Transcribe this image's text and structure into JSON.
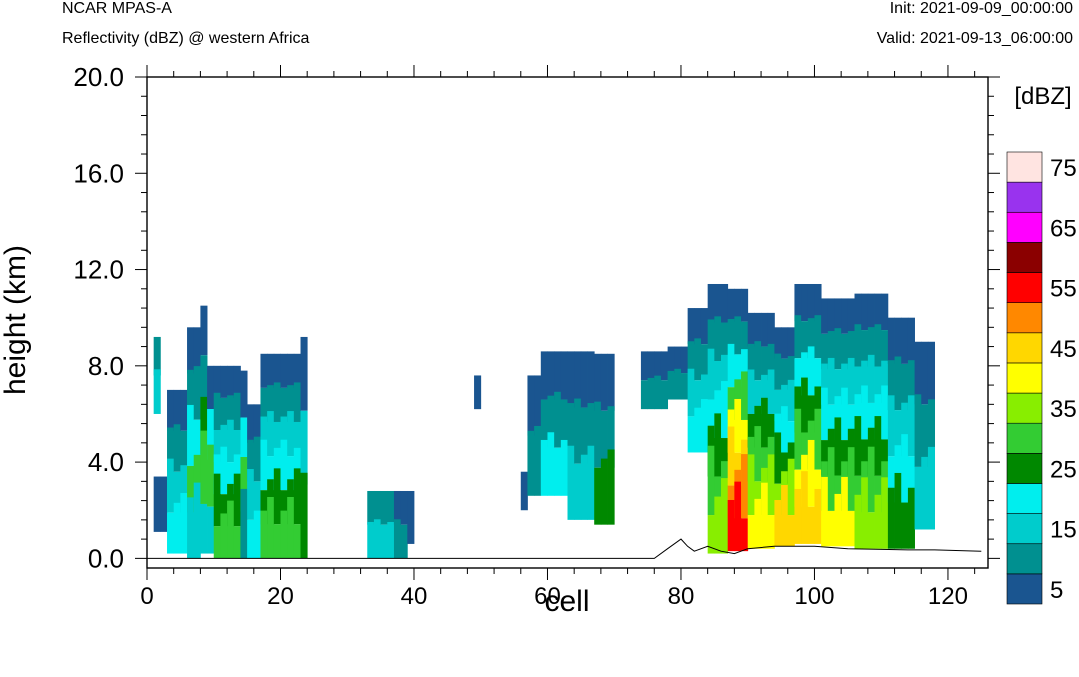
{
  "header": {
    "model": "NCAR MPAS-A",
    "field": "Reflectivity (dBZ) @ western Africa",
    "init": "Init: 2021-09-09_00:00:00",
    "valid": "Valid: 2021-09-13_06:00:00"
  },
  "chart_data": {
    "type": "heatmap",
    "xlabel": "cell",
    "ylabel": "height (km)",
    "xlim": [
      0,
      126
    ],
    "ylim": [
      -0.4,
      20.0
    ],
    "xticks": [
      0,
      20,
      40,
      60,
      80,
      100,
      120
    ],
    "yticks": [
      0,
      4,
      8,
      12,
      16,
      20
    ],
    "xtick_labels": [
      "0",
      "20",
      "40",
      "60",
      "80",
      "100",
      "120"
    ],
    "ytick_labels": [
      "0.0",
      "4.0",
      "8.0",
      "12.0",
      "16.0",
      "20.0"
    ],
    "colorbar": {
      "title": "[dBZ]",
      "labels": [
        "5",
        "15",
        "25",
        "35",
        "45",
        "55",
        "65",
        "75"
      ],
      "bins": [
        {
          "min": 5,
          "color": "#1a5590"
        },
        {
          "min": 10,
          "color": "#009090"
        },
        {
          "min": 15,
          "color": "#00cccc"
        },
        {
          "min": 20,
          "color": "#00eeee"
        },
        {
          "min": 25,
          "color": "#008800"
        },
        {
          "min": 30,
          "color": "#33cc33"
        },
        {
          "min": 35,
          "color": "#88ee00"
        },
        {
          "min": 40,
          "color": "#ffff00"
        },
        {
          "min": 45,
          "color": "#ffd700"
        },
        {
          "min": 50,
          "color": "#ff8800"
        },
        {
          "min": 55,
          "color": "#ff0000"
        },
        {
          "min": 60,
          "color": "#8b0000"
        },
        {
          "min": 65,
          "color": "#ff00ff"
        },
        {
          "min": 70,
          "color": "#9933ee"
        },
        {
          "min": 75,
          "color": "#ffe4e1"
        }
      ]
    },
    "columns": [
      {
        "cells": [
          1,
          2
        ],
        "top_km": 3.4,
        "bottom_km": 1.1,
        "levels": [
          5
        ]
      },
      {
        "cells": [
          1
        ],
        "top_km": 9.2,
        "bottom_km": 6.0,
        "levels": [
          10,
          15
        ]
      },
      {
        "cells": [
          3,
          4,
          5
        ],
        "top_km": 7.0,
        "bottom_km": 0.2,
        "levels": [
          5,
          10,
          15,
          20
        ]
      },
      {
        "cells": [
          6,
          7
        ],
        "top_km": 9.6,
        "bottom_km": 0.0,
        "levels": [
          5,
          10,
          20,
          30,
          15
        ]
      },
      {
        "cells": [
          8
        ],
        "top_km": 10.5,
        "bottom_km": 0.2,
        "levels": [
          5,
          10,
          25,
          30,
          15
        ]
      },
      {
        "cells": [
          9
        ],
        "top_km": 8.0,
        "bottom_km": 0.2,
        "levels": [
          5,
          20,
          30,
          15
        ]
      },
      {
        "cells": [
          10,
          11,
          12,
          13
        ],
        "top_km": 8.0,
        "bottom_km": 0.0,
        "levels": [
          5,
          10,
          15,
          20,
          25,
          30
        ]
      },
      {
        "cells": [
          14
        ],
        "top_km": 7.8,
        "bottom_km": 0.0,
        "levels": [
          5,
          20,
          30,
          10
        ]
      },
      {
        "cells": [
          15,
          16
        ],
        "top_km": 6.4,
        "bottom_km": 0.0,
        "levels": [
          5,
          10,
          15,
          20
        ]
      },
      {
        "cells": [
          17,
          18,
          19,
          20,
          21,
          22
        ],
        "top_km": 8.5,
        "bottom_km": 0.0,
        "levels": [
          5,
          10,
          15,
          20,
          25,
          30
        ]
      },
      {
        "cells": [
          23
        ],
        "top_km": 9.2,
        "bottom_km": 0.0,
        "levels": [
          5,
          15,
          25
        ]
      },
      {
        "cells": [
          33,
          34,
          35,
          36
        ],
        "top_km": 2.8,
        "bottom_km": 0.0,
        "levels": [
          10,
          15
        ]
      },
      {
        "cells": [
          37,
          38
        ],
        "top_km": 2.8,
        "bottom_km": 0.0,
        "levels": [
          5,
          10
        ]
      },
      {
        "cells": [
          39
        ],
        "top_km": 2.8,
        "bottom_km": 0.6,
        "levels": [
          5
        ]
      },
      {
        "cells": [
          49
        ],
        "top_km": 7.6,
        "bottom_km": 6.2,
        "levels": [
          5
        ]
      },
      {
        "cells": [
          56
        ],
        "top_km": 3.6,
        "bottom_km": 2.0,
        "levels": [
          5
        ]
      },
      {
        "cells": [
          57,
          58
        ],
        "top_km": 7.6,
        "bottom_km": 2.6,
        "levels": [
          5,
          10
        ]
      },
      {
        "cells": [
          59,
          60,
          61,
          62
        ],
        "top_km": 8.6,
        "bottom_km": 2.6,
        "levels": [
          5,
          10,
          20
        ]
      },
      {
        "cells": [
          63,
          64,
          65,
          66
        ],
        "top_km": 8.6,
        "bottom_km": 1.6,
        "levels": [
          5,
          10,
          15
        ]
      },
      {
        "cells": [
          67,
          68,
          69
        ],
        "top_km": 8.5,
        "bottom_km": 1.4,
        "levels": [
          5,
          10,
          25
        ]
      },
      {
        "cells": [
          74,
          75,
          76,
          77
        ],
        "top_km": 8.6,
        "bottom_km": 6.2,
        "levels": [
          5,
          10
        ]
      },
      {
        "cells": [
          78,
          79,
          80
        ],
        "top_km": 8.8,
        "bottom_km": 6.6,
        "levels": [
          5,
          10
        ]
      },
      {
        "cells": [
          81,
          82,
          83
        ],
        "top_km": 10.4,
        "bottom_km": 4.4,
        "levels": [
          5,
          10,
          15,
          20
        ]
      },
      {
        "cells": [
          84,
          85,
          86
        ],
        "top_km": 11.4,
        "bottom_km": 0.2,
        "levels": [
          5,
          10,
          15,
          20,
          25,
          30,
          35
        ]
      },
      {
        "cells": [
          87,
          88,
          89
        ],
        "top_km": 11.2,
        "bottom_km": 0.3,
        "levels": [
          5,
          10,
          20,
          30,
          40,
          45,
          50,
          55
        ]
      },
      {
        "cells": [
          90,
          91,
          92,
          93
        ],
        "top_km": 10.2,
        "bottom_km": 0.4,
        "levels": [
          5,
          10,
          15,
          25,
          30,
          35,
          40
        ]
      },
      {
        "cells": [
          94,
          95,
          96
        ],
        "top_km": 9.6,
        "bottom_km": 0.5,
        "levels": [
          5,
          10,
          15,
          20,
          25,
          35,
          45
        ]
      },
      {
        "cells": [
          97,
          98,
          99,
          100
        ],
        "top_km": 11.4,
        "bottom_km": 0.6,
        "levels": [
          5,
          10,
          20,
          25,
          30,
          40,
          45
        ]
      },
      {
        "cells": [
          101,
          102,
          103,
          104,
          105
        ],
        "top_km": 10.8,
        "bottom_km": 0.5,
        "levels": [
          5,
          10,
          15,
          20,
          25,
          30,
          40
        ]
      },
      {
        "cells": [
          106,
          107,
          108,
          109,
          110
        ],
        "top_km": 11.0,
        "bottom_km": 0.4,
        "levels": [
          5,
          10,
          15,
          20,
          25,
          30,
          35
        ]
      },
      {
        "cells": [
          111,
          112,
          113,
          114
        ],
        "top_km": 10.0,
        "bottom_km": 0.4,
        "levels": [
          5,
          10,
          15,
          20,
          25
        ]
      },
      {
        "cells": [
          115,
          116,
          117
        ],
        "top_km": 9.0,
        "bottom_km": 1.2,
        "levels": [
          5,
          10,
          15
        ]
      }
    ],
    "terrain_km": [
      [
        0,
        0.0
      ],
      [
        76,
        0.0
      ],
      [
        78,
        0.4
      ],
      [
        80,
        0.8
      ],
      [
        81,
        0.5
      ],
      [
        82,
        0.3
      ],
      [
        84,
        0.5
      ],
      [
        86,
        0.3
      ],
      [
        88,
        0.2
      ],
      [
        90,
        0.4
      ],
      [
        94,
        0.5
      ],
      [
        100,
        0.5
      ],
      [
        105,
        0.4
      ],
      [
        114,
        0.35
      ],
      [
        118,
        0.35
      ],
      [
        125,
        0.3
      ]
    ]
  }
}
